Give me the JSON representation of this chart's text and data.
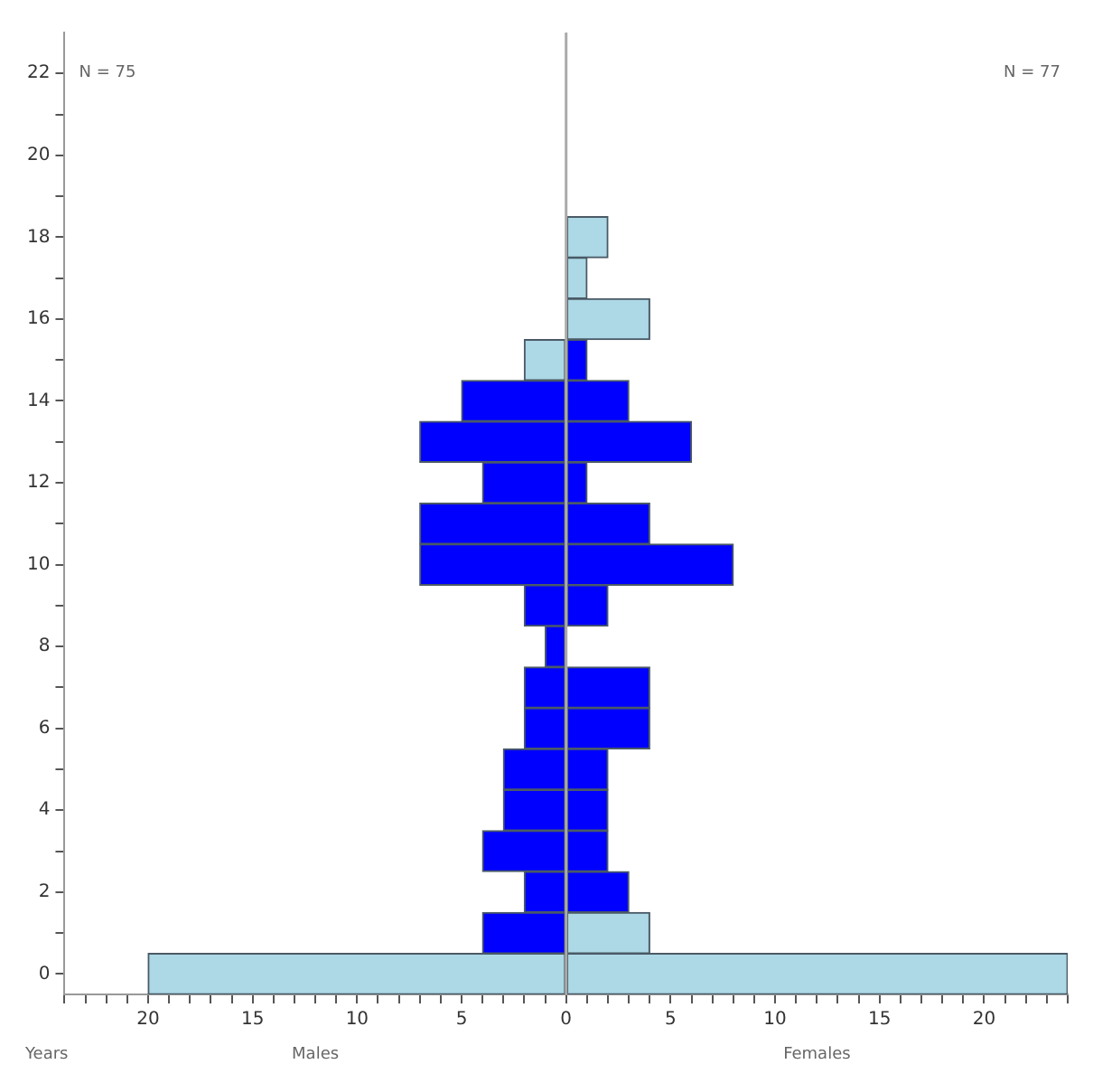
{
  "chart_data": {
    "type": "bar",
    "orientation": "horizontal",
    "ylabel": "Years",
    "x": [
      0,
      1,
      2,
      3,
      4,
      5,
      6,
      7,
      8,
      9,
      10,
      11,
      12,
      13,
      14,
      15,
      16,
      17,
      18
    ],
    "series": [
      {
        "values": [
          -20,
          -4,
          -2,
          -4,
          -3,
          -3,
          -2,
          -2,
          -1,
          -2,
          -7,
          -7,
          -4,
          -7,
          -5,
          -2,
          null,
          null,
          null
        ],
        "colors": [
          "#add8e6",
          "#0000ff",
          "#0000ff",
          "#0000ff",
          "#0000ff",
          "#0000ff",
          "#0000ff",
          "#0000ff",
          "#0000ff",
          "#0000ff",
          "#0000ff",
          "#0000ff",
          "#0000ff",
          "#0000ff",
          "#0000ff",
          "#add8e6",
          "#add8e6",
          "#add8e6",
          "#add8e6"
        ]
      },
      {
        "values": [
          24,
          4,
          3,
          2,
          2,
          2,
          4,
          4,
          null,
          2,
          8,
          4,
          1,
          6,
          3,
          1,
          4,
          1,
          2
        ],
        "colors": [
          "#add8e6",
          "#add8e6",
          "#0000ff",
          "#0000ff",
          "#0000ff",
          "#0000ff",
          "#0000ff",
          "#0000ff",
          "#0000ff",
          "#0000ff",
          "#0000ff",
          "#0000ff",
          "#0000ff",
          "#0000ff",
          "#0000ff",
          "#0000ff",
          "#add8e6",
          "#add8e6",
          "#add8e6"
        ]
      }
    ],
    "xlim": [
      -24,
      24
    ],
    "xticks": [
      {
        "value": -24,
        "label": null
      },
      {
        "value": -23,
        "label": null
      },
      {
        "value": -22,
        "label": null
      },
      {
        "value": -21,
        "label": null
      },
      {
        "value": -20,
        "label": "20"
      },
      {
        "value": -19,
        "label": null
      },
      {
        "value": -18,
        "label": null
      },
      {
        "value": -17,
        "label": null
      },
      {
        "value": -16,
        "label": null
      },
      {
        "value": -15,
        "label": "15"
      },
      {
        "value": -14,
        "label": null
      },
      {
        "value": -13,
        "label": null
      },
      {
        "value": -12,
        "label": null
      },
      {
        "value": -11,
        "label": null
      },
      {
        "value": -10,
        "label": "10"
      },
      {
        "value": -9,
        "label": null
      },
      {
        "value": -8,
        "label": null
      },
      {
        "value": -7,
        "label": null
      },
      {
        "value": -6,
        "label": null
      },
      {
        "value": -5,
        "label": "5"
      },
      {
        "value": -4,
        "label": null
      },
      {
        "value": -3,
        "label": null
      },
      {
        "value": -2,
        "label": null
      },
      {
        "value": -1,
        "label": null
      },
      0,
      {
        "value": 1,
        "label": null
      },
      {
        "value": 2,
        "label": null
      },
      {
        "value": 3,
        "label": null
      },
      {
        "value": 4,
        "label": null
      },
      5,
      {
        "value": 6,
        "label": null
      },
      {
        "value": 7,
        "label": null
      },
      {
        "value": 8,
        "label": null
      },
      {
        "value": 9,
        "label": null
      },
      10,
      {
        "value": 11,
        "label": null
      },
      {
        "value": 12,
        "label": null
      },
      {
        "value": 13,
        "label": null
      },
      {
        "value": 14,
        "label": null
      },
      15,
      {
        "value": 16,
        "label": null
      },
      {
        "value": 17,
        "label": null
      },
      {
        "value": 18,
        "label": null
      },
      {
        "value": 19,
        "label": null
      },
      20,
      {
        "value": 21,
        "label": null
      },
      {
        "value": 22,
        "label": null
      },
      {
        "value": 23,
        "label": null
      },
      {
        "value": 24,
        "label": null
      }
    ],
    "ylim": [
      -0.5,
      23
    ],
    "yticks": [
      0,
      {
        "value": 1,
        "label": null
      },
      2,
      {
        "value": 3,
        "label": null
      },
      4,
      {
        "value": 5,
        "label": null
      },
      6,
      {
        "value": 7,
        "label": null
      },
      8,
      {
        "value": 9,
        "label": null
      },
      10,
      {
        "value": 11,
        "label": null
      },
      12,
      {
        "value": 13,
        "label": null
      },
      14,
      {
        "value": 15,
        "label": null
      },
      16,
      {
        "value": 17,
        "label": null
      },
      18,
      {
        "value": 19,
        "label": null
      },
      20,
      {
        "value": 21,
        "label": null
      },
      22
    ],
    "ref_lines": [
      {
        "axis": "x",
        "value": 0,
        "color": "#aaaaaa"
      }
    ],
    "annotations": [
      "N = 75",
      "N = 77",
      "Males",
      "Females"
    ],
    "stacked": true,
    "grid": false,
    "legend": false
  }
}
